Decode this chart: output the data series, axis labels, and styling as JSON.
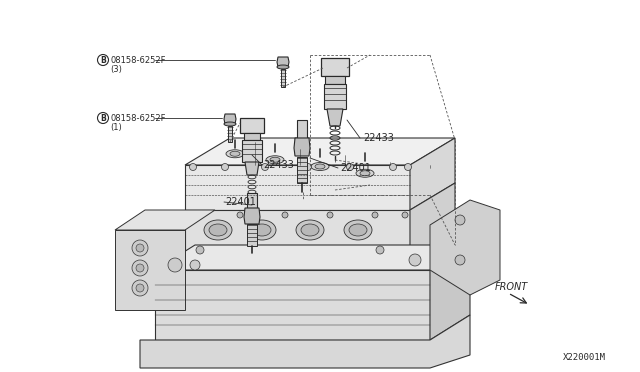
{
  "bg_color": "#ffffff",
  "line_color": "#2a2a2a",
  "text_color": "#2a2a2a",
  "label_22433": "22433",
  "label_22401": "22401",
  "bolt_label_top": "B 08158-6252F",
  "bolt_label_top_sub": "( 3)",
  "bolt_label_mid": "B 08158-6252F",
  "bolt_label_mid_sub": "( 1)",
  "front_label": "FRONT",
  "diagram_id": "X220001M",
  "figsize": [
    6.4,
    3.72
  ],
  "dpi": 100
}
